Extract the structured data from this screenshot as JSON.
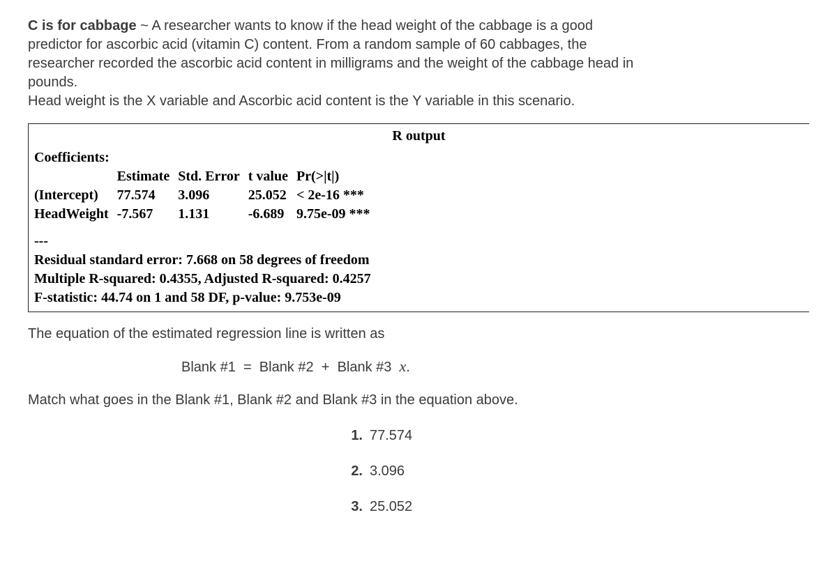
{
  "intro": {
    "lead": "C is for cabbage",
    "tilde": "~",
    "body1": "A researcher wants to know if the head weight of the cabbage is a good predictor for ascorbic acid (vitamin C) content. From a random sample of 60 cabbages, the researcher recorded the ascorbic acid content in milligrams and the weight of the cabbage head in pounds.",
    "body2": "Head weight is the X variable and Ascorbic acid content is the Y variable in this scenario."
  },
  "output": {
    "title": "R output",
    "coef_label": "Coefficients:",
    "headers": {
      "est": "Estimate",
      "se": "Std. Error",
      "t": "t value",
      "p": "Pr(>|t|)"
    },
    "rows": [
      {
        "name": "(Intercept)",
        "est": "77.574",
        "se": "3.096",
        "t": "25.052",
        "p": "< 2e-16 ***"
      },
      {
        "name": "HeadWeight",
        "est": "-7.567",
        "se": "1.131",
        "t": "-6.689",
        "p": "9.75e-09 ***"
      }
    ],
    "divider": "---",
    "rse": "Residual standard error: 7.668 on 58 degrees of freedom",
    "r2": "Multiple R-squared:  0.4355,  Adjusted R-squared:  0.4257",
    "fstat": "F-statistic: 44.74 on 1 and 58 DF, p-value: 9.753e-09"
  },
  "question": {
    "prompt": "The equation of the estimated regression line is written as",
    "eq_left": "Blank #1",
    "eq_eq": "=",
    "eq_b2": "Blank #2",
    "eq_plus": "+",
    "eq_b3": "Blank #3",
    "eq_var": "x",
    "eq_dot": ".",
    "match": "Match what goes in the Blank #1, Blank #2 and Blank #3 in the equation above."
  },
  "options": [
    {
      "n": "1.",
      "v": "77.574"
    },
    {
      "n": "2.",
      "v": "3.096"
    },
    {
      "n": "3.",
      "v": "25.052"
    }
  ]
}
